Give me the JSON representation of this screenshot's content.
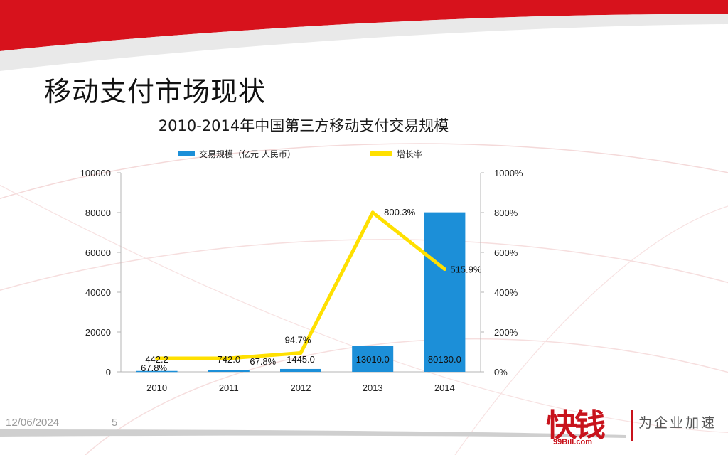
{
  "slide": {
    "title": "移动支付市场现状",
    "date": "12/06/2024",
    "page_number": "5"
  },
  "logo": {
    "mark": "快钱",
    "sub": "99Bill.com",
    "slogan": "为企业加速"
  },
  "colors": {
    "bar": "#1c8fd8",
    "line": "#ffe000",
    "accent_red": "#d7121c"
  },
  "chart_data": {
    "type": "bar",
    "title": "2010-2014年中国第三方移动支付交易规模",
    "categories": [
      "2010",
      "2011",
      "2012",
      "2013",
      "2014"
    ],
    "series": [
      {
        "name": "交易规模（亿元 人民币）",
        "type": "bar",
        "axis": "left",
        "values": [
          442.2,
          742.0,
          1445.0,
          13010.0,
          80130.0
        ],
        "labels": [
          "442.2",
          "742.0",
          "1445.0",
          "13010.0",
          "80130.0"
        ]
      },
      {
        "name": "增长率",
        "type": "line",
        "axis": "right",
        "values": [
          67.8,
          67.8,
          94.7,
          800.3,
          515.9
        ],
        "labels": [
          "67.8%",
          "67.8%",
          "94.7%",
          "800.3%",
          "515.9%"
        ]
      }
    ],
    "ylim_left": [
      0,
      100000
    ],
    "yticks_left": [
      "0",
      "20000",
      "40000",
      "60000",
      "80000",
      "100000"
    ],
    "ylim_right": [
      0,
      1000
    ],
    "yticks_right": [
      "0%",
      "200%",
      "400%",
      "600%",
      "800%",
      "1000%"
    ],
    "grid": false,
    "legend_position": "top"
  }
}
